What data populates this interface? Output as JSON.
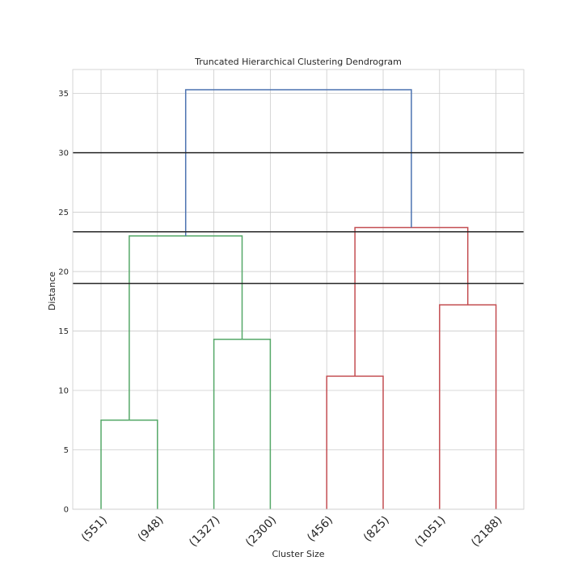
{
  "chart_data": {
    "type": "dendrogram",
    "title": "Truncated Hierarchical Clustering Dendrogram",
    "xlabel": "Cluster Size",
    "ylabel": "Distance",
    "ylim": [
      0,
      37
    ],
    "yticks": [
      0,
      5,
      10,
      15,
      20,
      25,
      30,
      35
    ],
    "grid": true,
    "leaf_labels": [
      "(551)",
      "(948)",
      "(1327)",
      "(2300)",
      "(456)",
      "(825)",
      "(1051)",
      "(2188)"
    ],
    "links": [
      {
        "left": [
          0,
          0
        ],
        "right": [
          1,
          0
        ],
        "height": 7.5,
        "color": "#55a868"
      },
      {
        "left": [
          2,
          0
        ],
        "right": [
          3,
          0
        ],
        "height": 14.3,
        "color": "#55a868"
      },
      {
        "left": [
          0.5,
          7.5
        ],
        "right": [
          2.5,
          14.3
        ],
        "height": 23.0,
        "color": "#55a868"
      },
      {
        "left": [
          4,
          0
        ],
        "right": [
          5,
          0
        ],
        "height": 11.2,
        "color": "#c44e52"
      },
      {
        "left": [
          6,
          0
        ],
        "right": [
          7,
          0
        ],
        "height": 17.2,
        "color": "#c44e52"
      },
      {
        "left": [
          4.5,
          11.2
        ],
        "right": [
          6.5,
          17.2
        ],
        "height": 23.7,
        "color": "#c44e52"
      },
      {
        "left": [
          1.5,
          23.0
        ],
        "right": [
          5.5,
          23.7
        ],
        "height": 35.3,
        "color": "#4c72b0"
      }
    ],
    "threshold_lines": [
      30,
      23.35,
      19.0
    ],
    "threshold_color": "#262626"
  }
}
